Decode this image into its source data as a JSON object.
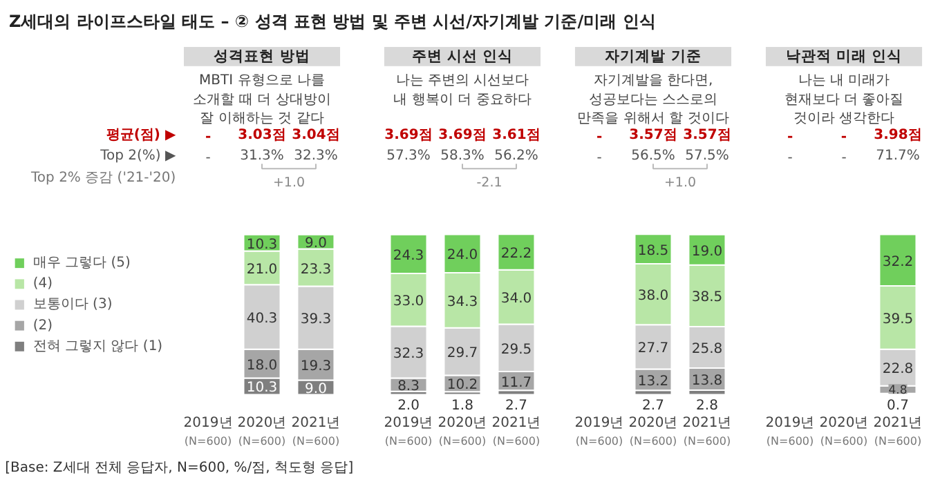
{
  "chart_data": [
    {
      "type": "other",
      "title": "Z세대의 라이프스타일 태도 – ② 성격 표현 방법 및 주변 시선/자기계발 기준/미래 인식"
    },
    {
      "type": "bar",
      "stacked": true,
      "legend": "left",
      "title": "성격표현 방법",
      "subtitle": "MBTI 유형으로 나를\n소개할 때 더 상대방이\n잘 이해하는 것 같다",
      "categories": [
        "2019년\n(N=600)",
        "2020년\n(N=600)",
        "2021년\n(N=600)"
      ],
      "series": [
        {
          "name": "전혀 그렇지 않다 (1)",
          "color": "#7f7f7f",
          "values": [
            null,
            10.3,
            9.0
          ],
          "value_labels": [
            null,
            "10.3",
            "9.0"
          ]
        },
        {
          "name": "(2)",
          "color": "#a6a6a6",
          "values": [
            null,
            18.0,
            19.3
          ],
          "value_labels": [
            null,
            "18.0",
            "19.3"
          ]
        },
        {
          "name": "보통이다 (3)",
          "color": "#d0d0d0",
          "values": [
            null,
            40.3,
            39.3
          ],
          "value_labels": [
            null,
            "40.3",
            "39.3"
          ]
        },
        {
          "name": "(4)",
          "color": "#b8e6a6",
          "values": [
            null,
            21.0,
            23.3
          ],
          "value_labels": [
            null,
            "21.0",
            "23.3"
          ]
        },
        {
          "name": "매우 그렇다 (5)",
          "color": "#70cf5c",
          "values": [
            null,
            10.3,
            9.0
          ],
          "value_labels": [
            null,
            "10.3",
            "9.0"
          ]
        }
      ],
      "annotations": [
        "-",
        "-",
        "3.03점",
        "31.3%",
        "3.04점",
        "32.3%",
        "평균(점) ▶",
        "Top 2(%) ▶",
        "Top 2% 증감 ('21-'20)",
        "+1.0",
        "[Base: Z세대 전체 응답자, N=600, %/점, 척도형 응답]"
      ]
    },
    {
      "type": "bar",
      "stacked": true,
      "title": "주변 시선 인식",
      "subtitle": "나는 주변의 시선보다\n내 행복이 더 중요하다",
      "categories": [
        "2019년\n(N=600)",
        "2020년\n(N=600)",
        "2021년\n(N=600)"
      ],
      "series": [
        {
          "color": "#7f7f7f",
          "values": [
            2.0,
            1.8,
            2.7
          ],
          "value_labels": [
            "2.0",
            "1.8",
            "2.7"
          ]
        },
        {
          "color": "#a6a6a6",
          "values": [
            8.3,
            10.2,
            11.7
          ],
          "value_labels": [
            "8.3",
            "10.2",
            "11.7"
          ]
        },
        {
          "color": "#d0d0d0",
          "values": [
            32.3,
            29.7,
            29.5
          ],
          "value_labels": [
            "32.3",
            "29.7",
            "29.5"
          ]
        },
        {
          "color": "#b8e6a6",
          "values": [
            33.0,
            34.3,
            34.0
          ],
          "value_labels": [
            "33.0",
            "34.3",
            "34.0"
          ]
        },
        {
          "color": "#70cf5c",
          "values": [
            24.3,
            24.0,
            22.2
          ],
          "value_labels": [
            "24.3",
            "24.0",
            "22.2"
          ]
        }
      ],
      "annotations": [
        "3.69점",
        "57.3%",
        "3.69점",
        "58.3%",
        "3.61점",
        "56.2%",
        "-2.1"
      ]
    },
    {
      "type": "bar",
      "stacked": true,
      "title": "자기계발 기준",
      "subtitle": "자기계발을 한다면,\n성공보다는 스스로의\n만족을 위해서 할 것이다",
      "categories": [
        "2019년\n(N=600)",
        "2020년\n(N=600)",
        "2021년\n(N=600)"
      ],
      "series": [
        {
          "color": "#7f7f7f",
          "values": [
            null,
            2.7,
            2.8
          ],
          "value_labels": [
            null,
            "2.7",
            "2.8"
          ]
        },
        {
          "color": "#a6a6a6",
          "values": [
            null,
            13.2,
            13.8
          ],
          "value_labels": [
            null,
            "13.2",
            "13.8"
          ]
        },
        {
          "color": "#d0d0d0",
          "values": [
            null,
            27.7,
            25.8
          ],
          "value_labels": [
            null,
            "27.7",
            "25.8"
          ]
        },
        {
          "color": "#b8e6a6",
          "values": [
            null,
            38.0,
            38.5
          ],
          "value_labels": [
            null,
            "38.0",
            "38.5"
          ]
        },
        {
          "color": "#70cf5c",
          "values": [
            null,
            18.5,
            19.0
          ],
          "value_labels": [
            null,
            "18.5",
            "19.0"
          ]
        }
      ],
      "annotations": [
        "-",
        "-",
        "3.57점",
        "56.5%",
        "3.57점",
        "57.5%",
        "+1.0"
      ]
    },
    {
      "type": "bar",
      "stacked": true,
      "title": "낙관적 미래 인식",
      "subtitle": "나는 내 미래가\n현재보다 더 좋아질\n것이라 생각한다",
      "categories": [
        "2019년\n(N=600)",
        "2020년\n(N=600)",
        "2021년\n(N=600)"
      ],
      "series": [
        {
          "color": "#7f7f7f",
          "values": [
            null,
            null,
            0.7
          ],
          "value_labels": [
            null,
            null,
            "0.7"
          ]
        },
        {
          "color": "#a6a6a6",
          "values": [
            null,
            null,
            4.8
          ],
          "value_labels": [
            null,
            null,
            "4.8"
          ]
        },
        {
          "color": "#d0d0d0",
          "values": [
            null,
            null,
            22.8
          ],
          "value_labels": [
            null,
            null,
            "22.8"
          ]
        },
        {
          "color": "#b8e6a6",
          "values": [
            null,
            null,
            39.5
          ],
          "value_labels": [
            null,
            null,
            "39.5"
          ]
        },
        {
          "color": "#70cf5c",
          "values": [
            null,
            null,
            32.2
          ],
          "value_labels": [
            null,
            null,
            "32.2"
          ]
        }
      ],
      "annotations": [
        "-",
        "-",
        "-",
        "-",
        "3.98점",
        "71.7%"
      ]
    }
  ]
}
